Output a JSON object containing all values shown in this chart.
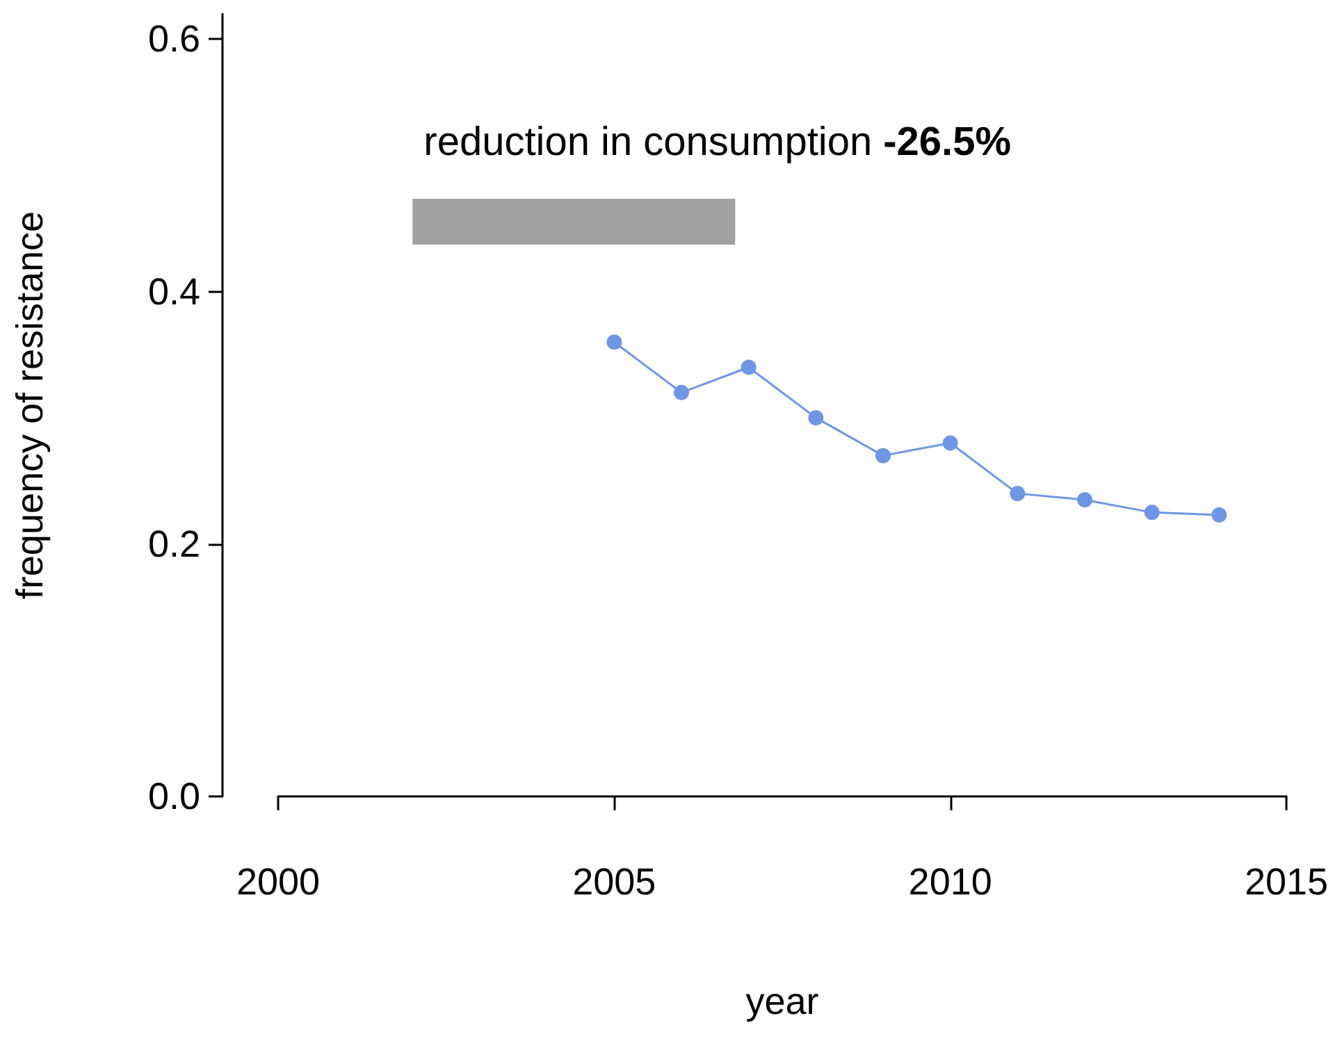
{
  "chart_data": {
    "type": "line",
    "xlabel": "year",
    "ylabel": "frequency of resistance",
    "x": [
      2005,
      2006,
      2007,
      2008,
      2009,
      2010,
      2011,
      2012,
      2013,
      2014
    ],
    "series": [
      {
        "color": "#6f96e6",
        "values": [
          0.36,
          0.32,
          0.34,
          0.3,
          0.27,
          0.28,
          0.24,
          0.235,
          0.225,
          0.223
        ]
      }
    ],
    "xlim": [
      2000,
      2015
    ],
    "xticks": [
      2000,
      2005,
      2010,
      2015
    ],
    "ylim": [
      0,
      0.62
    ],
    "yticks": [
      {
        "value": 0,
        "label": "0.0"
      },
      {
        "value": 0.2,
        "label": "0.2"
      },
      {
        "value": 0.4,
        "label": "0.4"
      },
      {
        "value": 0.6,
        "label": "0.6"
      }
    ],
    "bands": [
      {
        "axis": "x",
        "from": 2002,
        "to": 2006.8,
        "label": "reduction in consumption -26.5%",
        "color": "#a0a3a1"
      }
    ],
    "grid": false,
    "marker": "circle",
    "line_style": "solid"
  }
}
